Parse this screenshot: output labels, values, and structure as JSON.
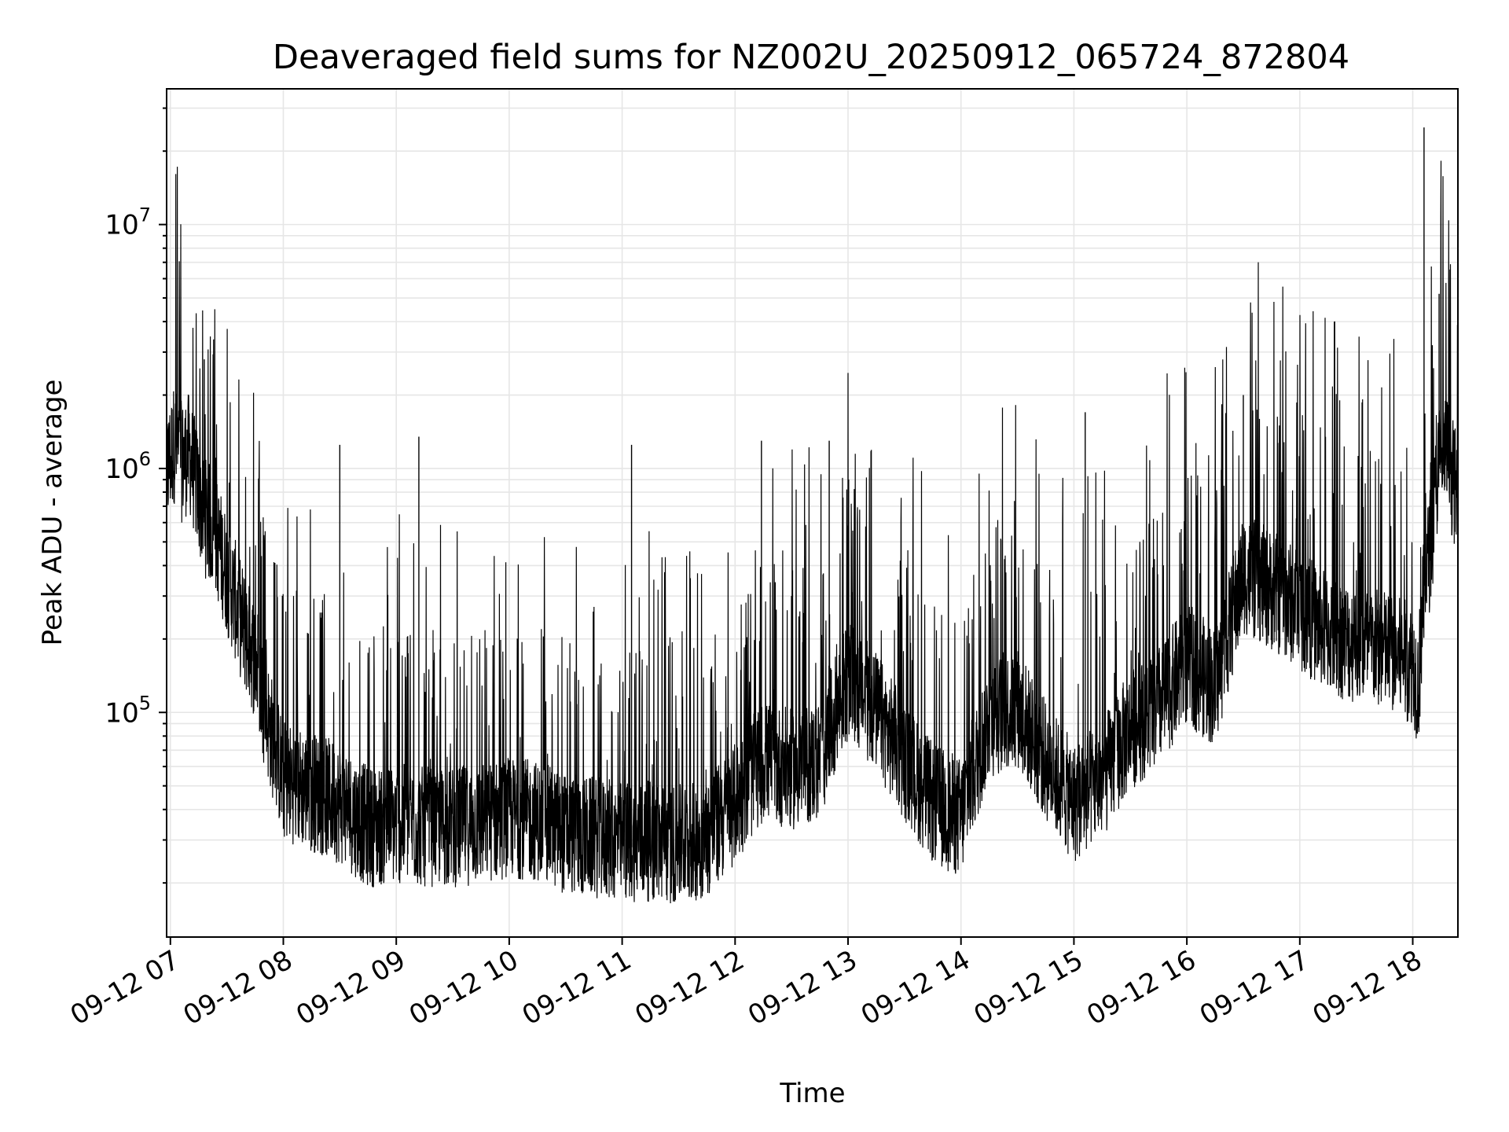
{
  "chart_data": {
    "type": "line",
    "title": "Deaveraged field sums for NZ002U_20250912_065724_872804",
    "xlabel": "Time",
    "ylabel": "Peak ADU - average",
    "x_type": "datetime",
    "x_start": "2025-09-12 06:58",
    "x_end": "2025-09-12 18:24",
    "xlim": [
      "2025-09-12 06:58",
      "2025-09-12 18:24"
    ],
    "ylim": [
      12000,
      36000000
    ],
    "yscale": "log",
    "grid": "both",
    "legend": "none",
    "line_color": "#000000",
    "x_ticks": [
      {
        "label": "09-12 07",
        "value": "2025-09-12 07:00"
      },
      {
        "label": "09-12 08",
        "value": "2025-09-12 08:00"
      },
      {
        "label": "09-12 09",
        "value": "2025-09-12 09:00"
      },
      {
        "label": "09-12 10",
        "value": "2025-09-12 10:00"
      },
      {
        "label": "09-12 11",
        "value": "2025-09-12 11:00"
      },
      {
        "label": "09-12 12",
        "value": "2025-09-12 12:00"
      },
      {
        "label": "09-12 13",
        "value": "2025-09-12 13:00"
      },
      {
        "label": "09-12 14",
        "value": "2025-09-12 14:00"
      },
      {
        "label": "09-12 15",
        "value": "2025-09-12 15:00"
      },
      {
        "label": "09-12 16",
        "value": "2025-09-12 16:00"
      },
      {
        "label": "09-12 17",
        "value": "2025-09-12 17:00"
      },
      {
        "label": "09-12 18",
        "value": "2025-09-12 18:00"
      }
    ],
    "y_ticks": [
      {
        "base": "10",
        "exp": "5",
        "value": 100000
      },
      {
        "base": "10",
        "exp": "6",
        "value": 1000000
      },
      {
        "base": "10",
        "exp": "7",
        "value": 10000000
      }
    ],
    "series": [
      {
        "x": [
          "2025-09-12 06:58",
          "2025-09-12 07:02",
          "2025-09-12 07:06",
          "2025-09-12 07:10",
          "2025-09-12 07:14",
          "2025-09-12 07:18",
          "2025-09-12 07:22",
          "2025-09-12 07:26",
          "2025-09-12 07:30",
          "2025-09-12 07:34",
          "2025-09-12 07:38",
          "2025-09-12 07:42",
          "2025-09-12 07:46",
          "2025-09-12 07:50",
          "2025-09-12 07:54",
          "2025-09-12 08:00",
          "2025-09-12 08:15",
          "2025-09-12 08:30",
          "2025-09-12 08:45",
          "2025-09-12 09:00",
          "2025-09-12 09:15",
          "2025-09-12 09:30",
          "2025-09-12 09:45",
          "2025-09-12 10:00",
          "2025-09-12 10:15",
          "2025-09-12 10:30",
          "2025-09-12 10:45",
          "2025-09-12 11:00",
          "2025-09-12 11:15",
          "2025-09-12 11:30",
          "2025-09-12 11:45",
          "2025-09-12 12:00",
          "2025-09-12 12:15",
          "2025-09-12 12:30",
          "2025-09-12 12:45",
          "2025-09-12 13:00",
          "2025-09-12 13:15",
          "2025-09-12 13:30",
          "2025-09-12 13:45",
          "2025-09-12 14:00",
          "2025-09-12 14:15",
          "2025-09-12 14:30",
          "2025-09-12 14:45",
          "2025-09-12 15:00",
          "2025-09-12 15:15",
          "2025-09-12 15:30",
          "2025-09-12 15:45",
          "2025-09-12 16:00",
          "2025-09-12 16:15",
          "2025-09-12 16:30",
          "2025-09-12 16:45",
          "2025-09-12 17:00",
          "2025-09-12 17:15",
          "2025-09-12 17:30",
          "2025-09-12 17:45",
          "2025-09-12 18:00",
          "2025-09-12 18:03",
          "2025-09-12 18:06",
          "2025-09-12 18:10",
          "2025-09-12 18:14",
          "2025-09-12 18:18",
          "2025-09-12 18:24"
        ],
        "values": [
          900000,
          1200000,
          1000000,
          1100000,
          800000,
          600000,
          550000,
          450000,
          350000,
          280000,
          220000,
          180000,
          150000,
          100000,
          75000,
          50000,
          45000,
          40000,
          32000,
          33000,
          32000,
          32000,
          33000,
          35000,
          34000,
          30000,
          29000,
          28000,
          28000,
          27000,
          29000,
          40000,
          60000,
          55000,
          60000,
          130000,
          95000,
          60000,
          40000,
          35000,
          90000,
          100000,
          60000,
          40000,
          50000,
          80000,
          100000,
          150000,
          120000,
          350000,
          300000,
          250000,
          200000,
          180000,
          170000,
          150000,
          120000,
          300000,
          500000,
          1000000,
          1100000,
          700000
        ]
      }
    ],
    "spikes": [
      {
        "x": "2025-09-12 07:18",
        "y": 2800000
      },
      {
        "x": "2025-09-12 08:30",
        "y": 1250000
      },
      {
        "x": "2025-09-12 09:12",
        "y": 1350000
      },
      {
        "x": "2025-09-12 11:05",
        "y": 1250000
      },
      {
        "x": "2025-09-12 12:14",
        "y": 1300000
      },
      {
        "x": "2025-09-12 12:50",
        "y": 1300000
      },
      {
        "x": "2025-09-12 15:06",
        "y": 1700000
      },
      {
        "x": "2025-09-12 16:30",
        "y": 2000000
      },
      {
        "x": "2025-09-12 18:06",
        "y": 25000000
      },
      {
        "x": "2025-09-12 18:14",
        "y": 5200000
      },
      {
        "x": "2025-09-12 18:20",
        "y": 2000000
      }
    ]
  }
}
